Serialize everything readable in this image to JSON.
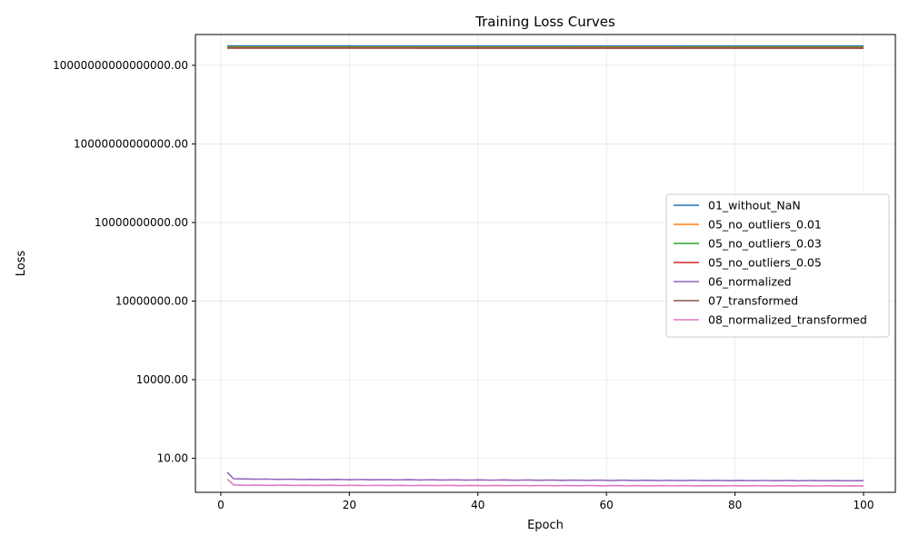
{
  "chart_data": {
    "type": "line",
    "title": "Training Loss Curves",
    "xlabel": "Epoch",
    "ylabel": "Loss",
    "y_scale": "log",
    "grid": true,
    "legend_position": "center-right",
    "xlim": [
      -3.95,
      104.95
    ],
    "ylim": [
      0.5,
      1.5e+17
    ],
    "x_ticks": [
      0,
      20,
      40,
      60,
      80,
      100
    ],
    "x_tick_labels": [
      "0",
      "20",
      "40",
      "60",
      "80",
      "100"
    ],
    "y_ticks": [
      10,
      10000,
      10000000,
      10000000000,
      10000000000000,
      10000000000000000
    ],
    "y_tick_labels": [
      "10.00",
      "10000.00",
      "10000000.00",
      "10000000000.00",
      "10000000000000.00",
      "10000000000000000.00"
    ],
    "x": {
      "start": 1,
      "end": 100,
      "step": 1
    },
    "series": [
      {
        "name": "01_without_NaN",
        "color": "#1f77b4",
        "start": 5.5e+16,
        "end": 5.45e+16,
        "first": 5.5e+16
      },
      {
        "name": "05_no_outliers_0.01",
        "color": "#ff7f0e",
        "start": 5e+16,
        "end": 4.95e+16,
        "first": 5e+16
      },
      {
        "name": "05_no_outliers_0.03",
        "color": "#2ca02c",
        "start": 4.8e+16,
        "end": 4.75e+16,
        "first": 4.8e+16
      },
      {
        "name": "05_no_outliers_0.05",
        "color": "#d62728",
        "start": 4.55e+16,
        "end": 4.5e+16,
        "first": 4.55e+16
      },
      {
        "name": "06_normalized",
        "color": "#9467bd",
        "start": 1.65,
        "end": 1.38,
        "first": 2.9
      },
      {
        "name": "07_transformed",
        "color": "#8c564b",
        "start": 4.6e+16,
        "end": 4.55e+16,
        "first": 4.6e+16
      },
      {
        "name": "08_normalized_transformed",
        "color": "#e377c2",
        "start": 0.95,
        "end": 0.88,
        "first": 1.6
      }
    ]
  }
}
